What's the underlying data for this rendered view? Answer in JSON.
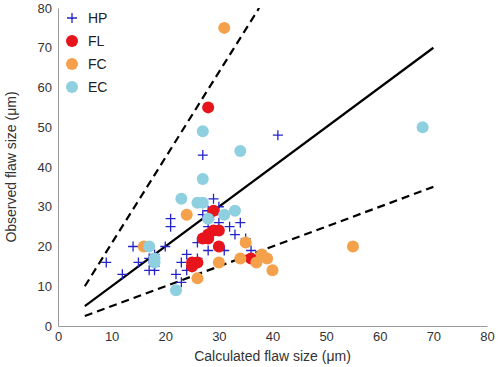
{
  "chart_data": {
    "type": "scatter",
    "x_label": "Calculated flaw size (μm)",
    "y_label": "Observed flaw size (μm)",
    "xlim": [
      0,
      80
    ],
    "ylim": [
      0,
      80
    ],
    "xticks": [
      0,
      10,
      20,
      30,
      40,
      50,
      60,
      70,
      80
    ],
    "yticks": [
      0,
      10,
      20,
      30,
      40,
      50,
      60,
      70,
      80
    ],
    "grid": false,
    "legend": "upper left",
    "series": [
      {
        "name": "HP",
        "color": "#2424c8",
        "marker": "plus",
        "x": [
          9,
          12,
          14,
          15,
          16,
          17,
          17,
          18,
          18,
          18,
          20,
          21,
          21,
          22,
          23,
          23,
          24,
          24,
          25,
          26,
          26,
          27,
          27,
          28,
          28,
          28,
          29,
          29,
          30,
          30,
          31,
          32,
          33,
          33,
          34,
          35,
          36,
          41
        ],
        "values": [
          16,
          13,
          20,
          16,
          20,
          17,
          14,
          14,
          15,
          18,
          20,
          27,
          25,
          13,
          11,
          16,
          18,
          14,
          16,
          21,
          17,
          28,
          43,
          19,
          29,
          25,
          28,
          32,
          30,
          26,
          19,
          25,
          23,
          29,
          26,
          22,
          19,
          48
        ]
      },
      {
        "name": "FL",
        "color": "#e8141c",
        "marker": "circle",
        "x": [
          25,
          25,
          26,
          27,
          28,
          28,
          28,
          29,
          29,
          30,
          30,
          36
        ],
        "values": [
          15,
          16,
          16,
          22,
          55,
          22,
          23,
          29,
          24,
          20,
          24,
          17
        ]
      },
      {
        "name": "FC",
        "color": "#f5a04a",
        "marker": "circle",
        "x": [
          16,
          24,
          26,
          30,
          31,
          34,
          35,
          37,
          38,
          39,
          40,
          55
        ],
        "values": [
          20,
          28,
          12,
          16,
          75,
          17,
          21,
          16,
          18,
          17,
          14,
          20
        ]
      },
      {
        "name": "EC",
        "color": "#8ecfe0",
        "marker": "circle",
        "x": [
          17,
          18,
          18,
          22,
          23,
          26,
          27,
          27,
          27,
          28,
          31,
          33,
          34,
          68
        ],
        "values": [
          20,
          17,
          16,
          9,
          32,
          31,
          49,
          37,
          31,
          27,
          28,
          29,
          44,
          50
        ]
      },
      {
        "type": "line",
        "color": "#000000",
        "line_style": "solid",
        "x": [
          5,
          70
        ],
        "values": [
          5,
          70
        ]
      },
      {
        "type": "line",
        "color": "#000000",
        "line_style": "dashed",
        "x": [
          5,
          37.5
        ],
        "values": [
          10,
          80
        ]
      },
      {
        "type": "line",
        "color": "#000000",
        "line_style": "dashed",
        "x": [
          5,
          70
        ],
        "values": [
          2.5,
          35
        ]
      }
    ]
  }
}
